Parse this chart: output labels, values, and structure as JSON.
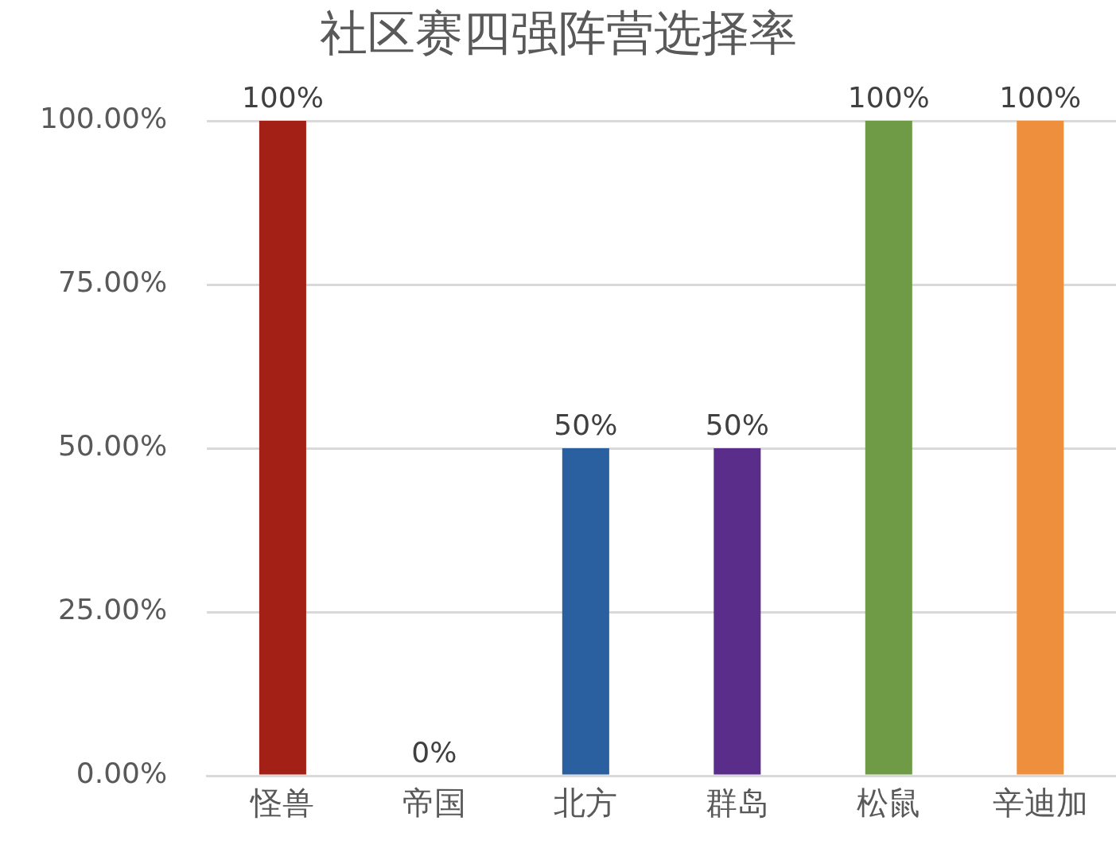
{
  "chart_data": {
    "type": "bar",
    "title": "社区赛四强阵营选择率",
    "categories": [
      "怪兽",
      "帝国",
      "北方",
      "群岛",
      "松鼠",
      "辛迪加"
    ],
    "values": [
      100,
      0,
      50,
      50,
      100,
      100
    ],
    "value_labels": [
      "100%",
      "0%",
      "50%",
      "50%",
      "100%",
      "100%"
    ],
    "colors": [
      "#a32017",
      "#2a5fa0",
      "#2a5fa0",
      "#5a2d8a",
      "#6f9b47",
      "#ee8f3e"
    ],
    "ylim": [
      0,
      100
    ],
    "yticks": [
      {
        "value": 0,
        "label": "0.00%"
      },
      {
        "value": 25,
        "label": "25.00%"
      },
      {
        "value": 50,
        "label": "50.00%"
      },
      {
        "value": 75,
        "label": "75.00%"
      },
      {
        "value": 100,
        "label": "100.00%"
      }
    ],
    "grid": "y",
    "legend": false
  }
}
